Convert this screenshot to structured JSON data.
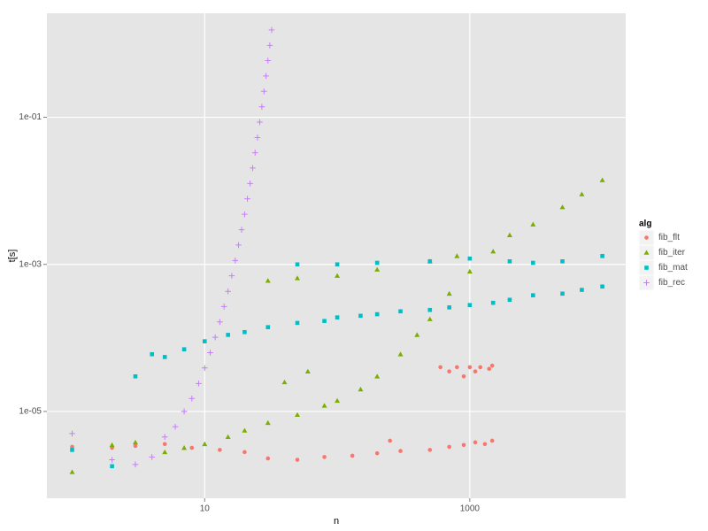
{
  "chart_data": {
    "type": "scatter",
    "x_label": "n",
    "y_label": "t[s]",
    "xscale": "log",
    "yscale": "log",
    "xlim": [
      0.645,
      15000
    ],
    "ylim": [
      6.6e-07,
      2.6
    ],
    "xticks": [
      10,
      1000
    ],
    "yticks": [
      {
        "value": 0.1,
        "label": "1e-01"
      },
      {
        "value": 0.001,
        "label": "1e-03"
      },
      {
        "value": 1e-05,
        "label": "1e-05"
      }
    ],
    "grid": true,
    "legend_title": "alg",
    "legend": "right",
    "series": [
      {
        "name": "fib_flt",
        "color": "#F8766D",
        "marker": "circle",
        "x": [
          1,
          2,
          3,
          5,
          8,
          13,
          20,
          30,
          50,
          80,
          130,
          200,
          300,
          500,
          700,
          900,
          1100,
          1300,
          1476,
          600,
          700,
          800,
          900,
          1000,
          1100,
          1200,
          1400,
          1476,
          250
        ],
        "values": [
          3.3e-06,
          3.2e-06,
          3.4e-06,
          3.6e-06,
          3.2e-06,
          3e-06,
          2.8e-06,
          2.3e-06,
          2.2e-06,
          2.4e-06,
          2.5e-06,
          2.7e-06,
          2.9e-06,
          3e-06,
          3.3e-06,
          3.5e-06,
          3.8e-06,
          3.6e-06,
          4e-06,
          4e-05,
          3.5e-05,
          4e-05,
          3e-05,
          4e-05,
          3.5e-05,
          4e-05,
          3.8e-05,
          4.2e-05,
          4e-06
        ]
      },
      {
        "name": "fib_iter",
        "color": "#7CAE00",
        "marker": "triangle",
        "x": [
          1,
          2,
          3,
          5,
          7,
          10,
          15,
          20,
          30,
          50,
          80,
          100,
          150,
          200,
          300,
          400,
          500,
          700,
          1000,
          1500,
          2000,
          3000,
          5000,
          7000,
          10000,
          30,
          50,
          100,
          200,
          500,
          800,
          60,
          40
        ],
        "values": [
          1.5e-06,
          3.5e-06,
          3.8e-06,
          2.8e-06,
          3.2e-06,
          3.6e-06,
          4.5e-06,
          5.5e-06,
          7e-06,
          9e-06,
          1.2e-05,
          1.4e-05,
          2e-05,
          3e-05,
          6e-05,
          0.00011,
          0.00018,
          0.0004,
          0.0008,
          0.0015,
          0.0025,
          0.0035,
          0.006,
          0.009,
          0.014,
          0.0006,
          0.00065,
          0.0007,
          0.00085,
          0.0011,
          0.0013,
          3.5e-05,
          2.5e-05
        ]
      },
      {
        "name": "fib_mat",
        "color": "#00BFC4",
        "marker": "square",
        "x": [
          1,
          2,
          3,
          4,
          5,
          7,
          10,
          15,
          20,
          30,
          50,
          80,
          100,
          150,
          200,
          300,
          500,
          700,
          1000,
          1500,
          2000,
          3000,
          5000,
          7000,
          10000,
          50,
          100,
          200,
          500,
          1000,
          2000,
          3000,
          5000,
          10000
        ],
        "values": [
          3e-06,
          1.8e-06,
          3e-05,
          6e-05,
          5.5e-05,
          7e-05,
          9e-05,
          0.00011,
          0.00012,
          0.00014,
          0.00016,
          0.00017,
          0.00019,
          0.0002,
          0.00021,
          0.00023,
          0.00024,
          0.00026,
          0.00028,
          0.0003,
          0.00033,
          0.00038,
          0.0004,
          0.00045,
          0.0005,
          0.001,
          0.001,
          0.00105,
          0.0011,
          0.0012,
          0.0011,
          0.00105,
          0.0011,
          0.0013
        ]
      },
      {
        "name": "fib_rec",
        "color": "#C77CFF",
        "marker": "plus",
        "x": [
          1,
          2,
          3,
          4,
          5,
          6,
          7,
          8,
          9,
          10,
          11,
          12,
          13,
          14,
          15,
          16,
          17,
          18,
          19,
          20,
          21,
          22,
          23,
          24,
          25,
          26,
          27,
          28,
          29,
          30,
          31,
          32
        ],
        "values": [
          5e-06,
          2.2e-06,
          1.9e-06,
          2.4e-06,
          4.5e-06,
          6.2e-06,
          1e-05,
          1.5e-05,
          2.4e-05,
          3.9e-05,
          6.3e-05,
          0.000102,
          0.000165,
          0.000267,
          0.00043,
          0.0007,
          0.00113,
          0.00183,
          0.00296,
          0.0048,
          0.0078,
          0.0126,
          0.0204,
          0.033,
          0.053,
          0.086,
          0.139,
          0.225,
          0.365,
          0.59,
          0.95,
          1.54
        ]
      }
    ]
  }
}
